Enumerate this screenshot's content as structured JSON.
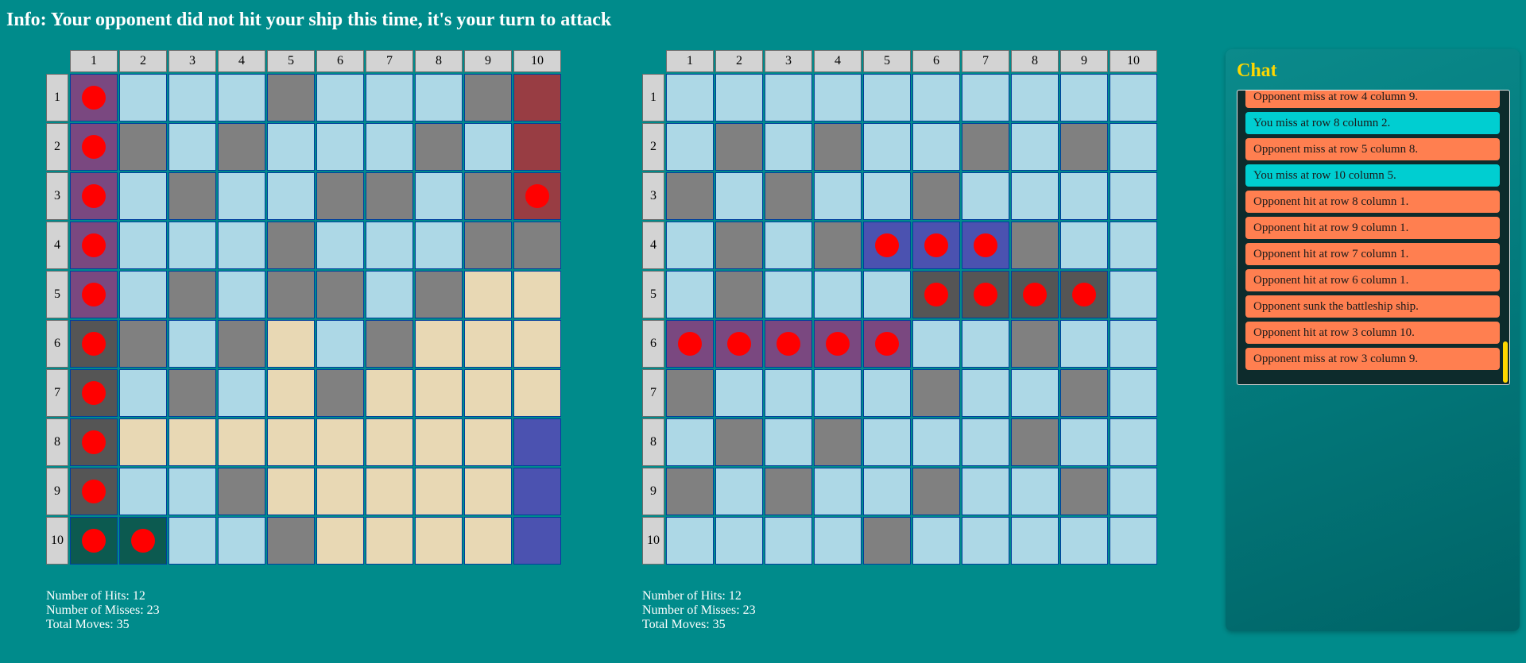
{
  "info": "Info: Your opponent did not hit your ship this time, it's your turn to attack",
  "column_labels": [
    "1",
    "2",
    "3",
    "4",
    "5",
    "6",
    "7",
    "8",
    "9",
    "10"
  ],
  "row_labels": [
    "1",
    "2",
    "3",
    "4",
    "5",
    "6",
    "7",
    "8",
    "9",
    "10"
  ],
  "colors": {
    "background": "#008b8b",
    "water": "#add8e6",
    "miss": "#808080",
    "sand": "#e8d8b4",
    "peg": "#ff0000",
    "ship_purple": "#7a4880",
    "ship_darkred": "#983d43",
    "ship_darkgray": "#555555",
    "ship_darkgreen": "#0c5a50",
    "ship_blue": "#4b52b0",
    "chat_title": "#ffd700",
    "opponent_message": "#ff7f50",
    "your_message": "#00ced1"
  },
  "legend_codes": {
    "W": "water",
    "M": "miss",
    "S": "sand",
    "P": "ship_purple",
    "R": "ship_darkred",
    "G": "ship_darkgray",
    "T": "ship_darkgreen",
    "B": "ship_blue",
    "*": "hit peg"
  },
  "left_board": {
    "grid": [
      [
        "P*",
        "W",
        "W",
        "W",
        "M",
        "W",
        "W",
        "W",
        "M",
        "R"
      ],
      [
        "P*",
        "M",
        "W",
        "M",
        "W",
        "W",
        "W",
        "M",
        "W",
        "R"
      ],
      [
        "P*",
        "W",
        "M",
        "W",
        "W",
        "M",
        "M",
        "W",
        "M",
        "R*"
      ],
      [
        "P*",
        "W",
        "W",
        "W",
        "M",
        "W",
        "W",
        "W",
        "M",
        "M"
      ],
      [
        "P*",
        "W",
        "M",
        "W",
        "M",
        "M",
        "W",
        "M",
        "S",
        "S"
      ],
      [
        "G*",
        "M",
        "W",
        "M",
        "S",
        "W",
        "M",
        "S",
        "S",
        "S"
      ],
      [
        "G*",
        "W",
        "M",
        "W",
        "S",
        "M",
        "S",
        "S",
        "S",
        "S"
      ],
      [
        "G*",
        "S",
        "S",
        "S",
        "S",
        "S",
        "S",
        "S",
        "S",
        "B"
      ],
      [
        "G*",
        "W",
        "W",
        "M",
        "S",
        "S",
        "S",
        "S",
        "S",
        "B"
      ],
      [
        "T*",
        "T*",
        "W",
        "W",
        "M",
        "S",
        "S",
        "S",
        "S",
        "B"
      ]
    ],
    "stats": {
      "hits": "Number of Hits: 12",
      "misses": "Number of Misses: 23",
      "total": "Total Moves: 35"
    }
  },
  "right_board": {
    "grid": [
      [
        "W",
        "W",
        "W",
        "W",
        "W",
        "W",
        "W",
        "W",
        "W",
        "W"
      ],
      [
        "W",
        "M",
        "W",
        "M",
        "W",
        "W",
        "M",
        "W",
        "M",
        "W"
      ],
      [
        "M",
        "W",
        "M",
        "W",
        "W",
        "M",
        "W",
        "W",
        "W",
        "W"
      ],
      [
        "W",
        "M",
        "W",
        "M",
        "B*",
        "B*",
        "B*",
        "M",
        "W",
        "W"
      ],
      [
        "W",
        "M",
        "W",
        "W",
        "W",
        "G*",
        "G*",
        "G*",
        "G*",
        "W"
      ],
      [
        "P*",
        "P*",
        "P*",
        "P*",
        "P*",
        "W",
        "W",
        "M",
        "W",
        "W"
      ],
      [
        "M",
        "W",
        "W",
        "W",
        "W",
        "M",
        "W",
        "W",
        "M",
        "W"
      ],
      [
        "W",
        "M",
        "W",
        "M",
        "W",
        "W",
        "W",
        "M",
        "W",
        "W"
      ],
      [
        "M",
        "W",
        "M",
        "W",
        "W",
        "M",
        "W",
        "W",
        "M",
        "W"
      ],
      [
        "W",
        "W",
        "W",
        "W",
        "M",
        "W",
        "W",
        "W",
        "W",
        "W"
      ]
    ],
    "stats": {
      "hits": "Number of Hits: 12",
      "misses": "Number of Misses: 23",
      "total": "Total Moves: 35"
    }
  },
  "chat": {
    "title": "Chat",
    "messages": [
      {
        "from": "opponent",
        "text": "Opponent miss at row 4 column 9."
      },
      {
        "from": "you",
        "text": "You miss at row 8 column 2."
      },
      {
        "from": "opponent",
        "text": "Opponent miss at row 5 column 8."
      },
      {
        "from": "you",
        "text": "You miss at row 10 column 5."
      },
      {
        "from": "opponent",
        "text": "Opponent hit at row 8 column 1."
      },
      {
        "from": "opponent",
        "text": "Opponent hit at row 9 column 1."
      },
      {
        "from": "opponent",
        "text": "Opponent hit at row 7 column 1."
      },
      {
        "from": "opponent",
        "text": "Opponent hit at row 6 column 1."
      },
      {
        "from": "opponent",
        "text": "Opponent sunk the battleship ship."
      },
      {
        "from": "opponent",
        "text": "Opponent hit at row 3 column 10."
      },
      {
        "from": "opponent",
        "text": "Opponent miss at row 3 column 9."
      }
    ]
  }
}
